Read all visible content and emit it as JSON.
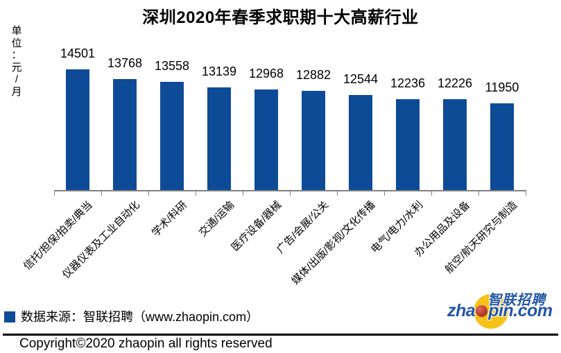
{
  "page": {
    "background": "#ffffff"
  },
  "chart_data": {
    "type": "bar",
    "title": "深圳2020年春季求职期十大高薪行业",
    "ylabel": "单位：元/月",
    "xlabel": "",
    "categories": [
      "信托/担保/拍卖/典当",
      "仪器仪表及工业自动化",
      "学术/科研",
      "交通/运输",
      "医疗设备/器械",
      "广告/会展/公关",
      "媒体/出版/影视/文化传播",
      "电气/电力/水利",
      "办公用品及设备",
      "航空/航天研究与制造"
    ],
    "values": [
      14501,
      13768,
      13558,
      13139,
      12968,
      12882,
      12544,
      12236,
      12226,
      11950
    ],
    "value_labels_position": "above-bars",
    "bar_color": "#0E4B97",
    "axis_color": "#7F7F7F",
    "ylim": [
      5400,
      14800
    ],
    "grid": false,
    "legend_position": "none",
    "category_label_rotation_deg": 45
  },
  "footer": {
    "source_text": "数据来源：智联招聘（www.zhaopin.com）",
    "copyright": "Copyright©2020 zhaopin all rights reserved"
  },
  "logo": {
    "chinese_name": "智联招聘",
    "domain_prefix": "zha",
    "domain_suffix": "pin.com",
    "blue": "#2456A8",
    "yellow": "#F6C217",
    "red": "#B23B34"
  }
}
